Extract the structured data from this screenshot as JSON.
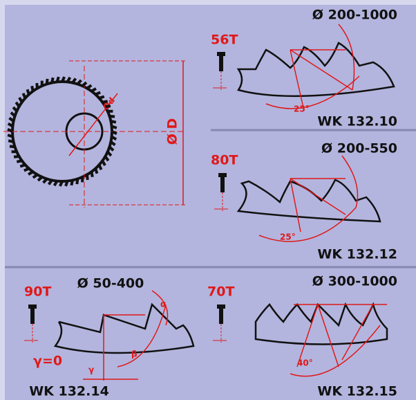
{
  "blade": {
    "bore_label": "Ød",
    "diameter_label": "Ø D"
  },
  "panels": [
    {
      "range": "Ø 200-1000",
      "teeth": "56T",
      "code": "WK 132.10",
      "angle": "25°"
    },
    {
      "range": "Ø 200-550",
      "teeth": "80T",
      "code": "WK 132.12",
      "angle": "25°"
    },
    {
      "range": "Ø 50-400",
      "teeth": "90T",
      "code": "WK 132.14",
      "rake": "γ=0",
      "gamma": "γ",
      "beta": "β",
      "alpha": "α"
    },
    {
      "range": "Ø 300-1000",
      "teeth": "70T",
      "code": "WK 132.15",
      "angle": "40°"
    }
  ]
}
